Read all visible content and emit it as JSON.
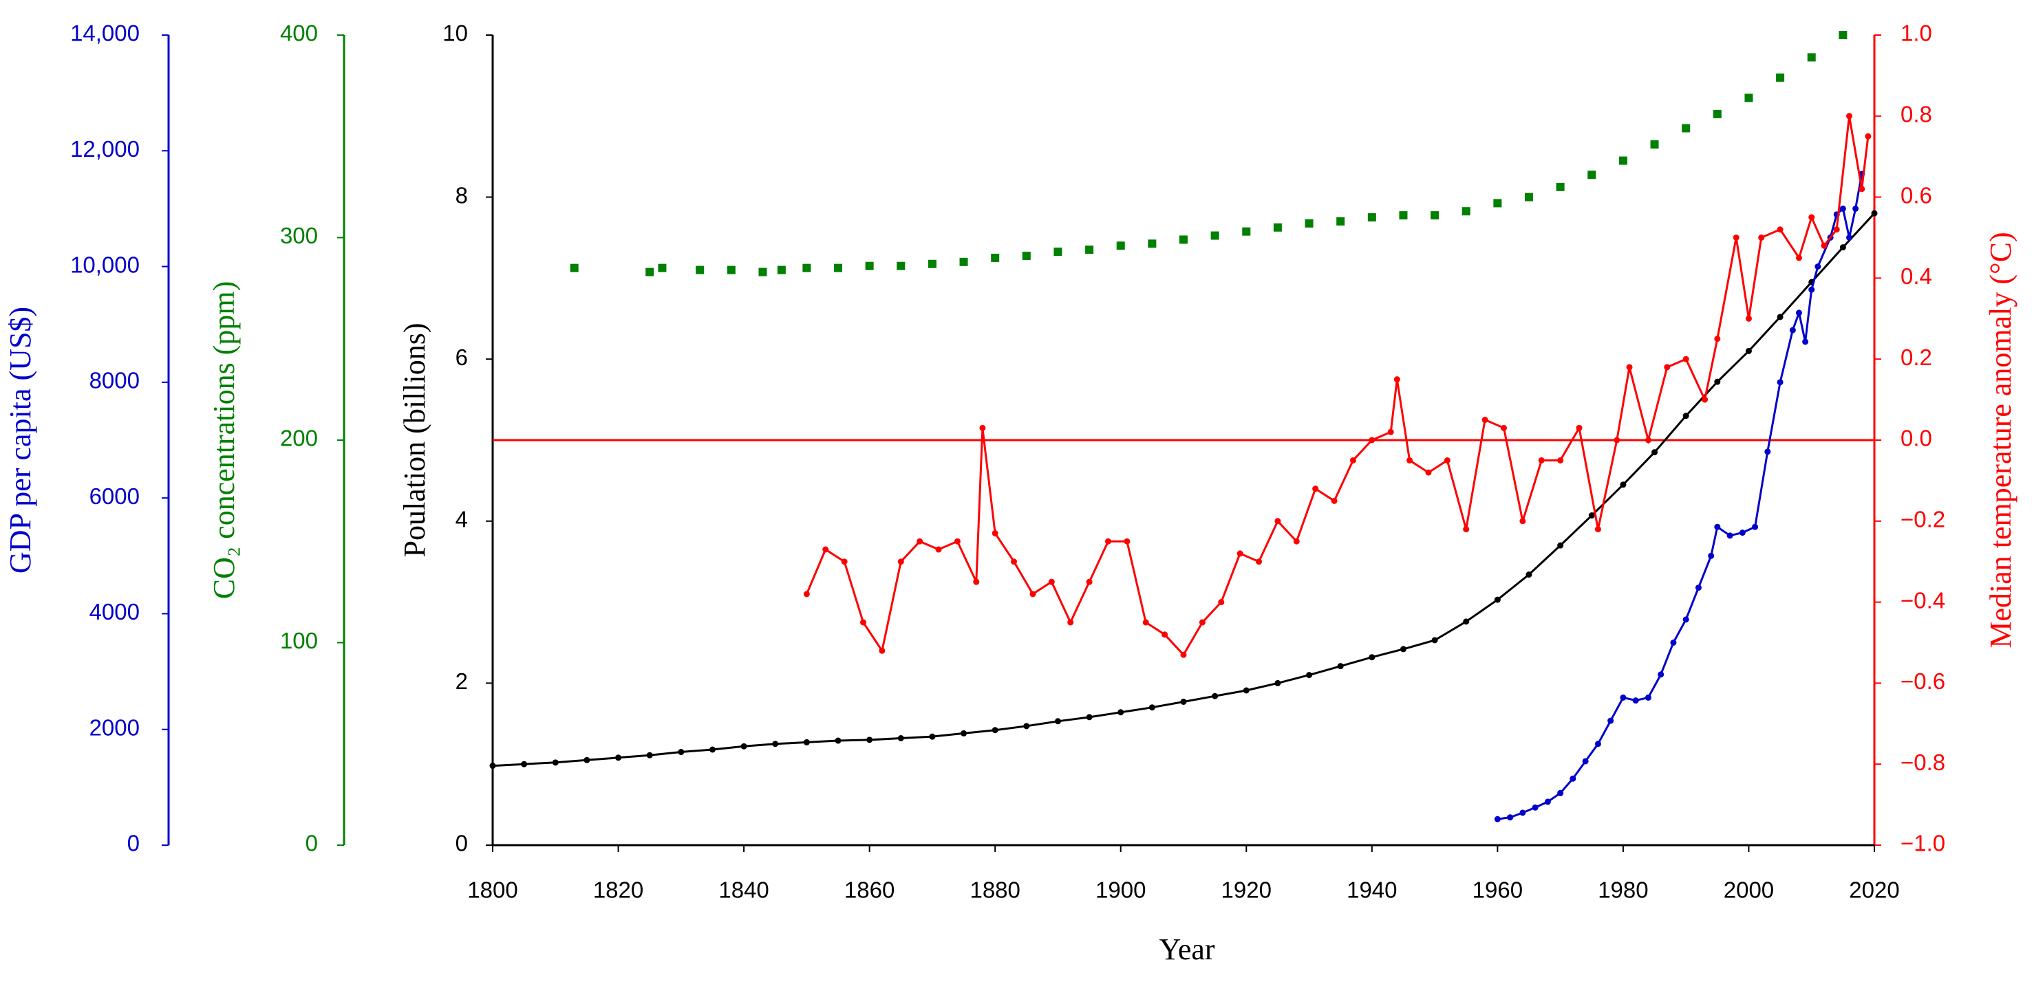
{
  "chart_data": {
    "type": "line",
    "xlabel": "Year",
    "ylabel": "Poulation (billions)",
    "y2label": "Median temperature anomaly (°C)",
    "y3label": "GDP per capita (US$)",
    "y4label": "CO₂ concentrations (ppm)",
    "xlim": [
      1800,
      2020
    ],
    "xticks": [
      1800,
      1820,
      1840,
      1860,
      1880,
      1900,
      1920,
      1940,
      1960,
      1980,
      2000,
      2020
    ],
    "ylim": [
      0,
      10
    ],
    "yticks": [
      0,
      2,
      4,
      6,
      8,
      10
    ],
    "y2lim": [
      -1,
      1
    ],
    "y2ticks": [
      {
        "value": -1,
        "label": "−1.0"
      },
      {
        "value": -0.8,
        "label": "−0.8"
      },
      {
        "value": -0.6,
        "label": "−0.6"
      },
      {
        "value": -0.4,
        "label": "−0.4"
      },
      {
        "value": -0.2,
        "label": "−0.2"
      },
      {
        "value": 0,
        "label": "0.0"
      },
      0.2,
      0.4,
      0.6,
      0.8,
      {
        "value": 1,
        "label": "1.0"
      }
    ],
    "y3lim": [
      0,
      14000
    ],
    "y3ticks": [
      0,
      2000,
      4000,
      6000,
      8000,
      {
        "value": 10000,
        "label": "10,000"
      },
      {
        "value": 12000,
        "label": "12,000"
      },
      {
        "value": 14000,
        "label": "14,000"
      }
    ],
    "y4lim": [
      0,
      400
    ],
    "y4ticks": [
      0,
      100,
      200,
      300,
      400
    ],
    "y2_reference": 0,
    "series": [
      {
        "color": "#000000",
        "axis": "y",
        "mode": "line",
        "x": [
          1800,
          1805,
          1810,
          1815,
          1820,
          1825,
          1830,
          1835,
          1840,
          1845,
          1850,
          1855,
          1860,
          1865,
          1870,
          1875,
          1880,
          1885,
          1890,
          1895,
          1900,
          1905,
          1910,
          1915,
          1920,
          1925,
          1930,
          1935,
          1940,
          1945,
          1950,
          1955,
          1960,
          1965,
          1970,
          1975,
          1980,
          1985,
          1990,
          1995,
          2000,
          2005,
          2010,
          2015,
          2020
        ],
        "values": [
          0.98,
          1.0,
          1.02,
          1.05,
          1.08,
          1.11,
          1.15,
          1.18,
          1.22,
          1.25,
          1.27,
          1.29,
          1.3,
          1.32,
          1.34,
          1.38,
          1.42,
          1.47,
          1.53,
          1.58,
          1.64,
          1.7,
          1.77,
          1.84,
          1.91,
          2.0,
          2.1,
          2.21,
          2.32,
          2.42,
          2.53,
          2.76,
          3.03,
          3.34,
          3.7,
          4.07,
          4.45,
          4.85,
          5.3,
          5.72,
          6.1,
          6.52,
          6.95,
          7.38,
          7.8
        ]
      },
      {
        "color": "#008000",
        "axis": "y4",
        "mode": "markers",
        "x": [
          1813,
          1825,
          1827,
          1833,
          1838,
          1843,
          1846,
          1850,
          1855,
          1860,
          1865,
          1870,
          1875,
          1880,
          1885,
          1890,
          1895,
          1900,
          1905,
          1910,
          1915,
          1920,
          1925,
          1930,
          1935,
          1940,
          1945,
          1950,
          1955,
          1960,
          1965,
          1970,
          1975,
          1980,
          1985,
          1990,
          1995,
          2000,
          2005,
          2010,
          2015
        ],
        "values": [
          285,
          283,
          285,
          284,
          284,
          283,
          284,
          285,
          285,
          286,
          286,
          287,
          288,
          290,
          291,
          293,
          294,
          296,
          297,
          299,
          301,
          303,
          305,
          307,
          308,
          310,
          311,
          311,
          313,
          317,
          320,
          325,
          331,
          338,
          346,
          354,
          361,
          369,
          379,
          389,
          400
        ]
      },
      {
        "color": "#0000cc",
        "axis": "y3",
        "mode": "line",
        "x": [
          1960,
          1962,
          1964,
          1966,
          1968,
          1970,
          1972,
          1974,
          1976,
          1978,
          1980,
          1982,
          1984,
          1986,
          1988,
          1990,
          1992,
          1994,
          1995,
          1997,
          1999,
          2001,
          2003,
          2005,
          2007,
          2008,
          2009,
          2010,
          2011,
          2013,
          2014,
          2015,
          2016,
          2017,
          2018
        ],
        "values": [
          450,
          480,
          560,
          650,
          750,
          900,
          1150,
          1450,
          1750,
          2150,
          2550,
          2500,
          2550,
          2950,
          3500,
          3900,
          4450,
          5000,
          5500,
          5350,
          5400,
          5500,
          6800,
          8000,
          8900,
          9200,
          8700,
          9600,
          10000,
          10500,
          10900,
          11000,
          10500,
          11000,
          11600
        ]
      },
      {
        "color": "#ff0000",
        "axis": "y2",
        "mode": "line",
        "x": [
          1850,
          1853,
          1856,
          1859,
          1862,
          1865,
          1868,
          1871,
          1874,
          1877,
          1878,
          1880,
          1883,
          1886,
          1889,
          1892,
          1895,
          1898,
          1901,
          1904,
          1907,
          1910,
          1913,
          1916,
          1919,
          1922,
          1925,
          1928,
          1931,
          1934,
          1937,
          1940,
          1943,
          1944,
          1946,
          1949,
          1952,
          1955,
          1958,
          1961,
          1964,
          1967,
          1970,
          1973,
          1976,
          1979,
          1981,
          1984,
          1987,
          1990,
          1993,
          1995,
          1998,
          2000,
          2002,
          2005,
          2008,
          2010,
          2012,
          2014,
          2016,
          2018,
          2019
        ],
        "values": [
          -0.38,
          -0.27,
          -0.3,
          -0.45,
          -0.52,
          -0.3,
          -0.25,
          -0.27,
          -0.25,
          -0.35,
          0.03,
          -0.23,
          -0.3,
          -0.38,
          -0.35,
          -0.45,
          -0.35,
          -0.25,
          -0.25,
          -0.45,
          -0.48,
          -0.53,
          -0.45,
          -0.4,
          -0.28,
          -0.3,
          -0.2,
          -0.25,
          -0.12,
          -0.15,
          -0.05,
          0.0,
          0.02,
          0.15,
          -0.05,
          -0.08,
          -0.05,
          -0.22,
          0.05,
          0.03,
          -0.2,
          -0.05,
          -0.05,
          0.03,
          -0.22,
          0.0,
          0.18,
          0.0,
          0.18,
          0.2,
          0.1,
          0.25,
          0.5,
          0.3,
          0.5,
          0.52,
          0.45,
          0.55,
          0.48,
          0.52,
          0.8,
          0.62,
          0.75
        ]
      }
    ]
  }
}
